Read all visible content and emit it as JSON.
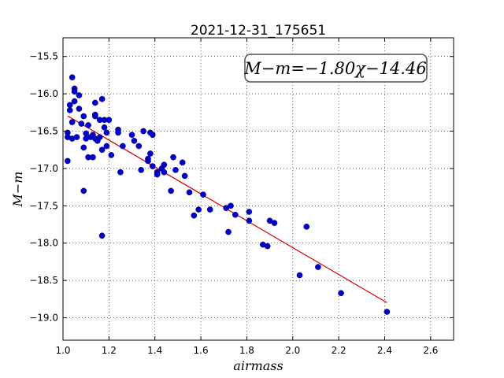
{
  "chart_data": {
    "type": "scatter",
    "title": "2021-12-31_175651",
    "xlabel": "airmass",
    "ylabel": "M−m",
    "xlim": [
      1.0,
      2.7
    ],
    "ylim": [
      -15.25,
      -19.3
    ],
    "y_inverted": true,
    "grid": true,
    "annotation": "M−m=−1.80χ−14.46",
    "x_ticks": [
      1.0,
      1.2,
      1.4,
      1.6,
      1.8,
      2.0,
      2.2,
      2.4,
      2.6
    ],
    "x_tick_labels": [
      "1.0",
      "1.2",
      "1.4",
      "1.6",
      "1.8",
      "2.0",
      "2.2",
      "2.4",
      "2.6"
    ],
    "y_ticks": [
      -15.5,
      -16.0,
      -16.5,
      -17.0,
      -17.5,
      -18.0,
      -18.5,
      -19.0
    ],
    "y_tick_labels": [
      "−15.5",
      "−16.0",
      "−16.5",
      "−17.0",
      "−17.5",
      "−18.0",
      "−18.5",
      "−19.0"
    ],
    "series": [
      {
        "type": "scatter",
        "color": "#0000cc",
        "points": [
          [
            1.02,
            -16.9
          ],
          [
            1.02,
            -16.52
          ],
          [
            1.02,
            -16.58
          ],
          [
            1.03,
            -16.22
          ],
          [
            1.03,
            -16.15
          ],
          [
            1.04,
            -15.78
          ],
          [
            1.04,
            -16.38
          ],
          [
            1.04,
            -16.6
          ],
          [
            1.05,
            -15.93
          ],
          [
            1.05,
            -15.97
          ],
          [
            1.05,
            -16.1
          ],
          [
            1.06,
            -16.58
          ],
          [
            1.07,
            -16.02
          ],
          [
            1.07,
            -16.2
          ],
          [
            1.08,
            -16.4
          ],
          [
            1.09,
            -16.3
          ],
          [
            1.09,
            -16.72
          ],
          [
            1.09,
            -17.3
          ],
          [
            1.1,
            -16.6
          ],
          [
            1.1,
            -16.53
          ],
          [
            1.11,
            -16.42
          ],
          [
            1.11,
            -16.85
          ],
          [
            1.12,
            -16.58
          ],
          [
            1.13,
            -16.85
          ],
          [
            1.13,
            -16.55
          ],
          [
            1.14,
            -16.6
          ],
          [
            1.14,
            -16.28
          ],
          [
            1.14,
            -16.3
          ],
          [
            1.14,
            -16.12
          ],
          [
            1.15,
            -16.63
          ],
          [
            1.15,
            -16.62
          ],
          [
            1.16,
            -16.35
          ],
          [
            1.16,
            -16.58
          ],
          [
            1.17,
            -16.07
          ],
          [
            1.17,
            -16.75
          ],
          [
            1.17,
            -17.9
          ],
          [
            1.18,
            -16.45
          ],
          [
            1.18,
            -16.35
          ],
          [
            1.19,
            -16.52
          ],
          [
            1.19,
            -16.7
          ],
          [
            1.2,
            -16.35
          ],
          [
            1.21,
            -16.82
          ],
          [
            1.24,
            -16.48
          ],
          [
            1.24,
            -16.52
          ],
          [
            1.25,
            -17.05
          ],
          [
            1.26,
            -16.7
          ],
          [
            1.3,
            -16.55
          ],
          [
            1.31,
            -16.63
          ],
          [
            1.33,
            -16.7
          ],
          [
            1.34,
            -17.02
          ],
          [
            1.35,
            -16.5
          ],
          [
            1.37,
            -16.87
          ],
          [
            1.37,
            -16.9
          ],
          [
            1.38,
            -16.52
          ],
          [
            1.38,
            -16.8
          ],
          [
            1.39,
            -16.97
          ],
          [
            1.39,
            -16.55
          ],
          [
            1.41,
            -17.05
          ],
          [
            1.41,
            -17.08
          ],
          [
            1.43,
            -17.0
          ],
          [
            1.44,
            -16.95
          ],
          [
            1.44,
            -17.05
          ],
          [
            1.47,
            -17.3
          ],
          [
            1.48,
            -16.85
          ],
          [
            1.49,
            -17.02
          ],
          [
            1.52,
            -16.92
          ],
          [
            1.53,
            -17.1
          ],
          [
            1.55,
            -17.32
          ],
          [
            1.57,
            -17.63
          ],
          [
            1.59,
            -17.55
          ],
          [
            1.61,
            -17.35
          ],
          [
            1.64,
            -17.55
          ],
          [
            1.71,
            -17.53
          ],
          [
            1.72,
            -17.85
          ],
          [
            1.73,
            -17.5
          ],
          [
            1.75,
            -17.62
          ],
          [
            1.81,
            -17.58
          ],
          [
            1.81,
            -17.7
          ],
          [
            1.87,
            -18.02
          ],
          [
            1.89,
            -18.04
          ],
          [
            1.9,
            -17.7
          ],
          [
            1.92,
            -17.73
          ],
          [
            2.03,
            -18.43
          ],
          [
            2.06,
            -17.78
          ],
          [
            2.11,
            -18.32
          ],
          [
            2.21,
            -18.67
          ],
          [
            2.41,
            -18.92
          ]
        ]
      },
      {
        "type": "line",
        "color": "#dd0000",
        "x": [
          1.02,
          2.41
        ],
        "y": [
          -16.296,
          -18.798
        ]
      }
    ]
  }
}
